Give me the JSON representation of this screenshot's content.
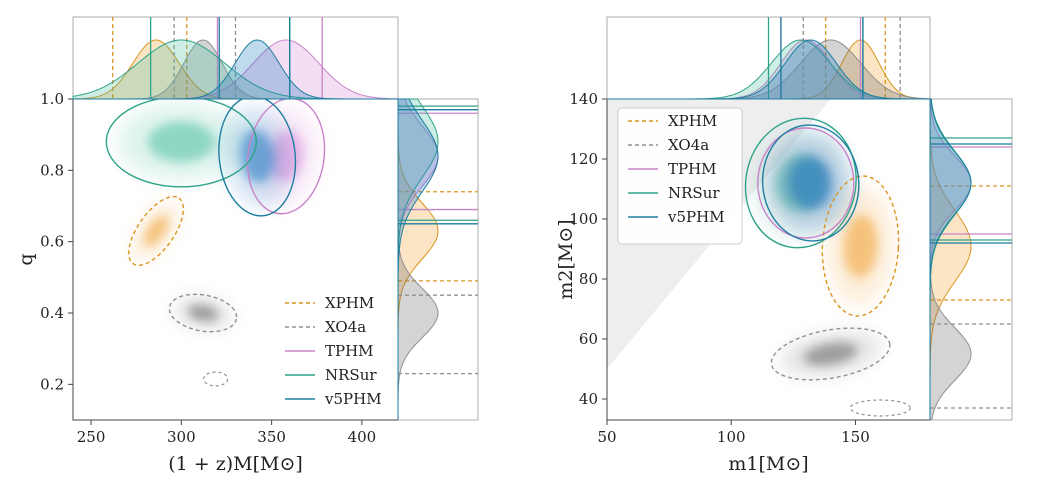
{
  "chart_data": [
    {
      "type": "scatter",
      "subtype": "corner-contour-with-marginals",
      "xlabel": "(1 + z)M[M⊙]",
      "ylabel": "q",
      "xlim": [
        240,
        420
      ],
      "ylim": [
        0.1,
        1.0
      ],
      "xticks": [
        250,
        300,
        350,
        400
      ],
      "yticks": [
        0.2,
        0.4,
        0.6,
        0.8,
        1.0
      ],
      "legend": {
        "placement": "lower-right",
        "entries": [
          {
            "name": "XPHM",
            "style": "dashed",
            "color": "#d99520"
          },
          {
            "name": "XO4a",
            "style": "dashed",
            "color": "#909090"
          },
          {
            "name": "TPHM",
            "style": "solid",
            "color": "#c884c8"
          },
          {
            "name": "NRSur",
            "style": "solid",
            "color": "#2fa389"
          },
          {
            "name": "v5PHM",
            "style": "solid",
            "color": "#1d7ea0"
          }
        ]
      },
      "series": [
        {
          "name": "XPHM",
          "center": {
            "x": 286,
            "y": 0.63
          },
          "x_interval": [
            262,
            303
          ],
          "y_interval": [
            0.49,
            0.74
          ]
        },
        {
          "name": "XO4a",
          "center": {
            "x": 312,
            "y": 0.4
          },
          "x_interval": [
            296,
            330
          ],
          "y_interval": [
            0.23,
            0.45
          ]
        },
        {
          "name": "TPHM",
          "center": {
            "x": 358,
            "y": 0.84
          },
          "x_interval": [
            320,
            378
          ],
          "y_interval": [
            0.69,
            0.96
          ]
        },
        {
          "name": "NRSur",
          "center": {
            "x": 300,
            "y": 0.88
          },
          "x_interval": [
            283,
            360
          ],
          "y_interval": [
            0.66,
            0.98
          ]
        },
        {
          "name": "v5PHM",
          "center": {
            "x": 342,
            "y": 0.84
          },
          "x_interval": [
            321,
            360
          ],
          "y_interval": [
            0.65,
            0.97
          ]
        }
      ]
    },
    {
      "type": "scatter",
      "subtype": "corner-contour-with-marginals",
      "xlabel": "m1[M⊙]",
      "ylabel": "m2[M⊙]",
      "xlim": [
        50,
        180
      ],
      "ylim": [
        33,
        140
      ],
      "xticks": [
        50,
        100,
        150
      ],
      "yticks": [
        40,
        60,
        80,
        100,
        120,
        140
      ],
      "legend": {
        "placement": "top-left",
        "entries": [
          {
            "name": "XPHM",
            "style": "dashed",
            "color": "#d99520"
          },
          {
            "name": "XO4a",
            "style": "dashed",
            "color": "#909090"
          },
          {
            "name": "TPHM",
            "style": "solid",
            "color": "#c884c8"
          },
          {
            "name": "NRSur",
            "style": "solid",
            "color": "#2fa389"
          },
          {
            "name": "v5PHM",
            "style": "solid",
            "color": "#1d7ea0"
          }
        ]
      },
      "series": [
        {
          "name": "XPHM",
          "center": {
            "x": 152,
            "y": 91
          },
          "x_interval": [
            138,
            162
          ],
          "y_interval": [
            73,
            111
          ]
        },
        {
          "name": "XO4a",
          "center": {
            "x": 140,
            "y": 55
          },
          "x_interval": [
            129,
            168
          ],
          "y_interval": [
            37,
            65
          ]
        },
        {
          "name": "TPHM",
          "center": {
            "x": 130,
            "y": 112
          },
          "x_interval": [
            120,
            152
          ],
          "y_interval": [
            95,
            124
          ]
        },
        {
          "name": "NRSur",
          "center": {
            "x": 128,
            "y": 112
          },
          "x_interval": [
            115,
            153
          ],
          "y_interval": [
            93,
            127
          ]
        },
        {
          "name": "v5PHM",
          "center": {
            "x": 132,
            "y": 112
          },
          "x_interval": [
            120,
            153
          ],
          "y_interval": [
            92,
            125
          ]
        }
      ]
    }
  ]
}
